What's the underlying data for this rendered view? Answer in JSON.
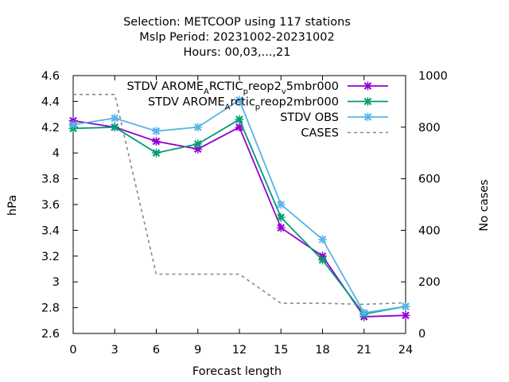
{
  "chart_data": {
    "type": "line",
    "title_lines": [
      "Selection: METCOOP using   117 stations",
      "Mslp   Period: 20231002-20231002",
      "Hours:  00,03,...,21"
    ],
    "xlabel": "Forecast length",
    "ylabel": "hPa",
    "y2label": "No cases",
    "x": [
      0,
      3,
      6,
      9,
      12,
      15,
      18,
      21,
      24
    ],
    "x_ticks": [
      "0",
      "3",
      "6",
      "9",
      "12",
      "15",
      "18",
      "21",
      "24"
    ],
    "xlim": [
      0,
      24
    ],
    "ylim": [
      2.6,
      4.6
    ],
    "y_ticks": [
      "2.6",
      "2.8",
      "3",
      "3.2",
      "3.4",
      "3.6",
      "3.8",
      "4",
      "4.2",
      "4.4",
      "4.6"
    ],
    "y2lim": [
      0,
      1000
    ],
    "y2_ticks": [
      "0",
      "200",
      "400",
      "600",
      "800",
      "1000"
    ],
    "legend_position": "top-right",
    "grid": false,
    "series": [
      {
        "legend_parts": [
          {
            "text": "STDV AROME",
            "sub": false
          },
          {
            "text": "A",
            "sub": true
          },
          {
            "text": "RCTIC",
            "sub": false
          },
          {
            "text": "p",
            "sub": true
          },
          {
            "text": "reop2",
            "sub": false
          },
          {
            "text": "v",
            "sub": true
          },
          {
            "text": "5mbr000",
            "sub": false
          }
        ],
        "axis": "y",
        "color": "#9400d3",
        "dash": false,
        "marker": "x",
        "values": [
          4.25,
          4.2,
          4.09,
          4.03,
          4.2,
          3.42,
          3.2,
          2.73,
          2.74
        ]
      },
      {
        "legend_parts": [
          {
            "text": "STDV AROME",
            "sub": false
          },
          {
            "text": "A",
            "sub": true
          },
          {
            "text": "rctic",
            "sub": false
          },
          {
            "text": "p",
            "sub": true
          },
          {
            "text": "reop2mbr000",
            "sub": false
          }
        ],
        "axis": "y",
        "color": "#009e73",
        "dash": false,
        "marker": "x",
        "values": [
          4.19,
          4.2,
          4.0,
          4.07,
          4.26,
          3.5,
          3.17,
          2.75,
          2.81
        ]
      },
      {
        "legend_parts": [
          {
            "text": "STDV OBS",
            "sub": false
          }
        ],
        "axis": "y",
        "color": "#56b4e9",
        "dash": false,
        "marker": "x",
        "values": [
          4.22,
          4.27,
          4.17,
          4.2,
          4.41,
          3.6,
          3.33,
          2.76,
          2.81
        ]
      },
      {
        "legend_parts": [
          {
            "text": "CASES",
            "sub": false
          }
        ],
        "axis": "y2",
        "color": "#888888",
        "dash": true,
        "marker": "none",
        "values": [
          927,
          927,
          230,
          230,
          230,
          117,
          117,
          113,
          119
        ]
      }
    ]
  }
}
